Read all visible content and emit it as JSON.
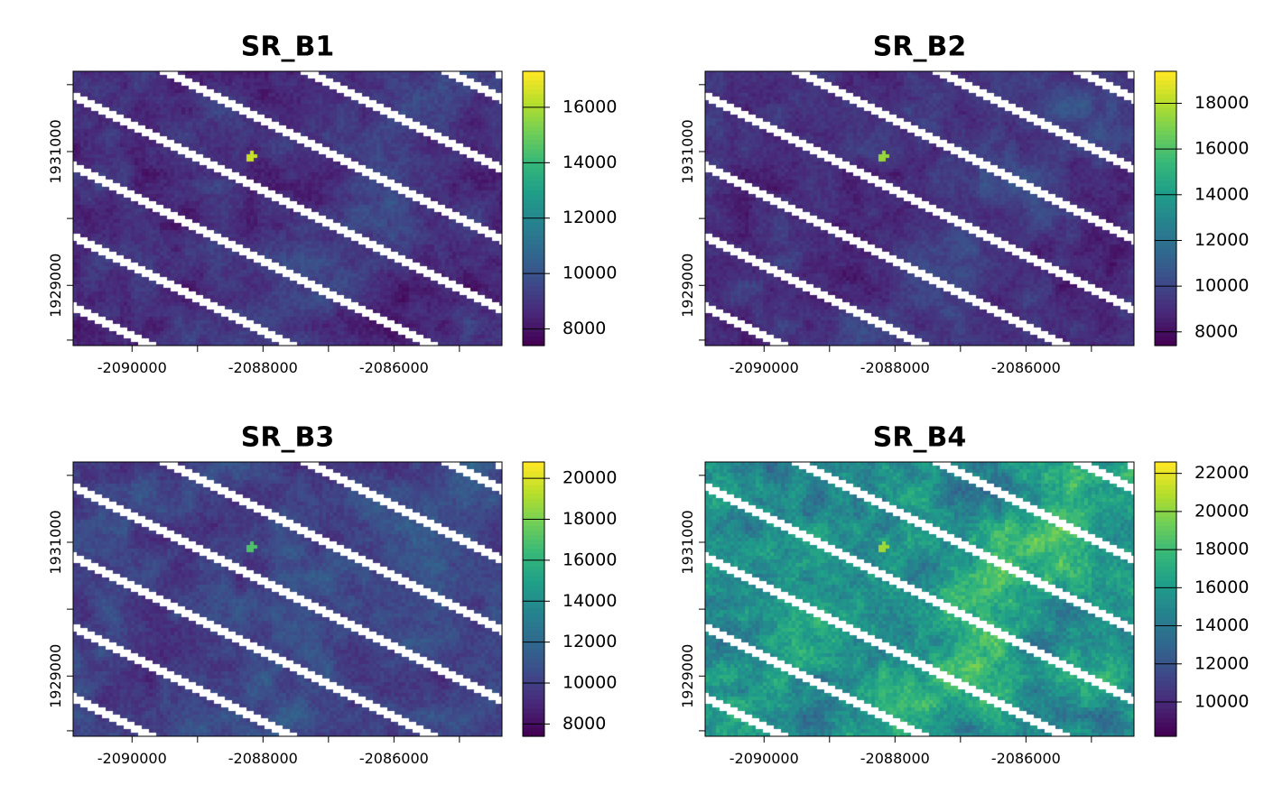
{
  "chart_data": [
    {
      "type": "heatmap",
      "title": "SR_B1",
      "x_ticks": [
        -2090000,
        -2088000,
        -2086000
      ],
      "x_tick_labels": [
        "-2090000",
        "-2088000",
        "-2086000"
      ],
      "y_ticks": [
        1929000,
        1931000
      ],
      "y_tick_labels": [
        "1929000",
        "1931000"
      ],
      "xlim": [
        -2090900,
        -2084350
      ],
      "ylim": [
        1928100,
        1932200
      ],
      "colorbar_ticks": [
        8000,
        10000,
        12000,
        14000,
        16000
      ],
      "colorbar_tick_labels": [
        "8000",
        "10000",
        "12000",
        "14000",
        "16000"
      ],
      "colorbar_range": [
        7400,
        17300
      ],
      "value_mean": 8700,
      "value_sd": 700,
      "hotspot_value": 16500,
      "colormap": "viridis"
    },
    {
      "type": "heatmap",
      "title": "SR_B2",
      "x_ticks": [
        -2090000,
        -2088000,
        -2086000
      ],
      "x_tick_labels": [
        "-2090000",
        "-2088000",
        "-2086000"
      ],
      "y_ticks": [
        1929000,
        1931000
      ],
      "y_tick_labels": [
        "1929000",
        "1931000"
      ],
      "xlim": [
        -2090900,
        -2084350
      ],
      "ylim": [
        1928100,
        1932200
      ],
      "colorbar_ticks": [
        8000,
        10000,
        12000,
        14000,
        16000,
        18000
      ],
      "colorbar_tick_labels": [
        "8000",
        "10000",
        "12000",
        "14000",
        "16000",
        "18000"
      ],
      "colorbar_range": [
        7400,
        19400
      ],
      "value_mean": 9000,
      "value_sd": 800,
      "hotspot_value": 17500,
      "colormap": "viridis"
    },
    {
      "type": "heatmap",
      "title": "SR_B3",
      "x_ticks": [
        -2090000,
        -2088000,
        -2086000
      ],
      "x_tick_labels": [
        "-2090000",
        "-2088000",
        "-2086000"
      ],
      "y_ticks": [
        1929000,
        1931000
      ],
      "y_tick_labels": [
        "1929000",
        "1931000"
      ],
      "xlim": [
        -2090900,
        -2084350
      ],
      "ylim": [
        1928100,
        1932200
      ],
      "colorbar_ticks": [
        8000,
        10000,
        12000,
        14000,
        16000,
        18000,
        20000
      ],
      "colorbar_tick_labels": [
        "8000",
        "10000",
        "12000",
        "14000",
        "16000",
        "18000",
        "20000"
      ],
      "colorbar_range": [
        7400,
        20800
      ],
      "value_mean": 10000,
      "value_sd": 1000,
      "hotspot_value": 17000,
      "colormap": "viridis"
    },
    {
      "type": "heatmap",
      "title": "SR_B4",
      "x_ticks": [
        -2090000,
        -2088000,
        -2086000
      ],
      "x_tick_labels": [
        "-2090000",
        "-2088000",
        "-2086000"
      ],
      "y_ticks": [
        1929000,
        1931000
      ],
      "y_tick_labels": [
        "1929000",
        "1931000"
      ],
      "xlim": [
        -2090900,
        -2084350
      ],
      "ylim": [
        1928100,
        1932200
      ],
      "colorbar_ticks": [
        10000,
        12000,
        14000,
        16000,
        18000,
        20000,
        22000
      ],
      "colorbar_tick_labels": [
        "10000",
        "12000",
        "14000",
        "16000",
        "18000",
        "20000",
        "22000"
      ],
      "colorbar_range": [
        8200,
        22600
      ],
      "value_mean": 15500,
      "value_sd": 2000,
      "hotspot_value": 20500,
      "colormap": "viridis"
    }
  ]
}
